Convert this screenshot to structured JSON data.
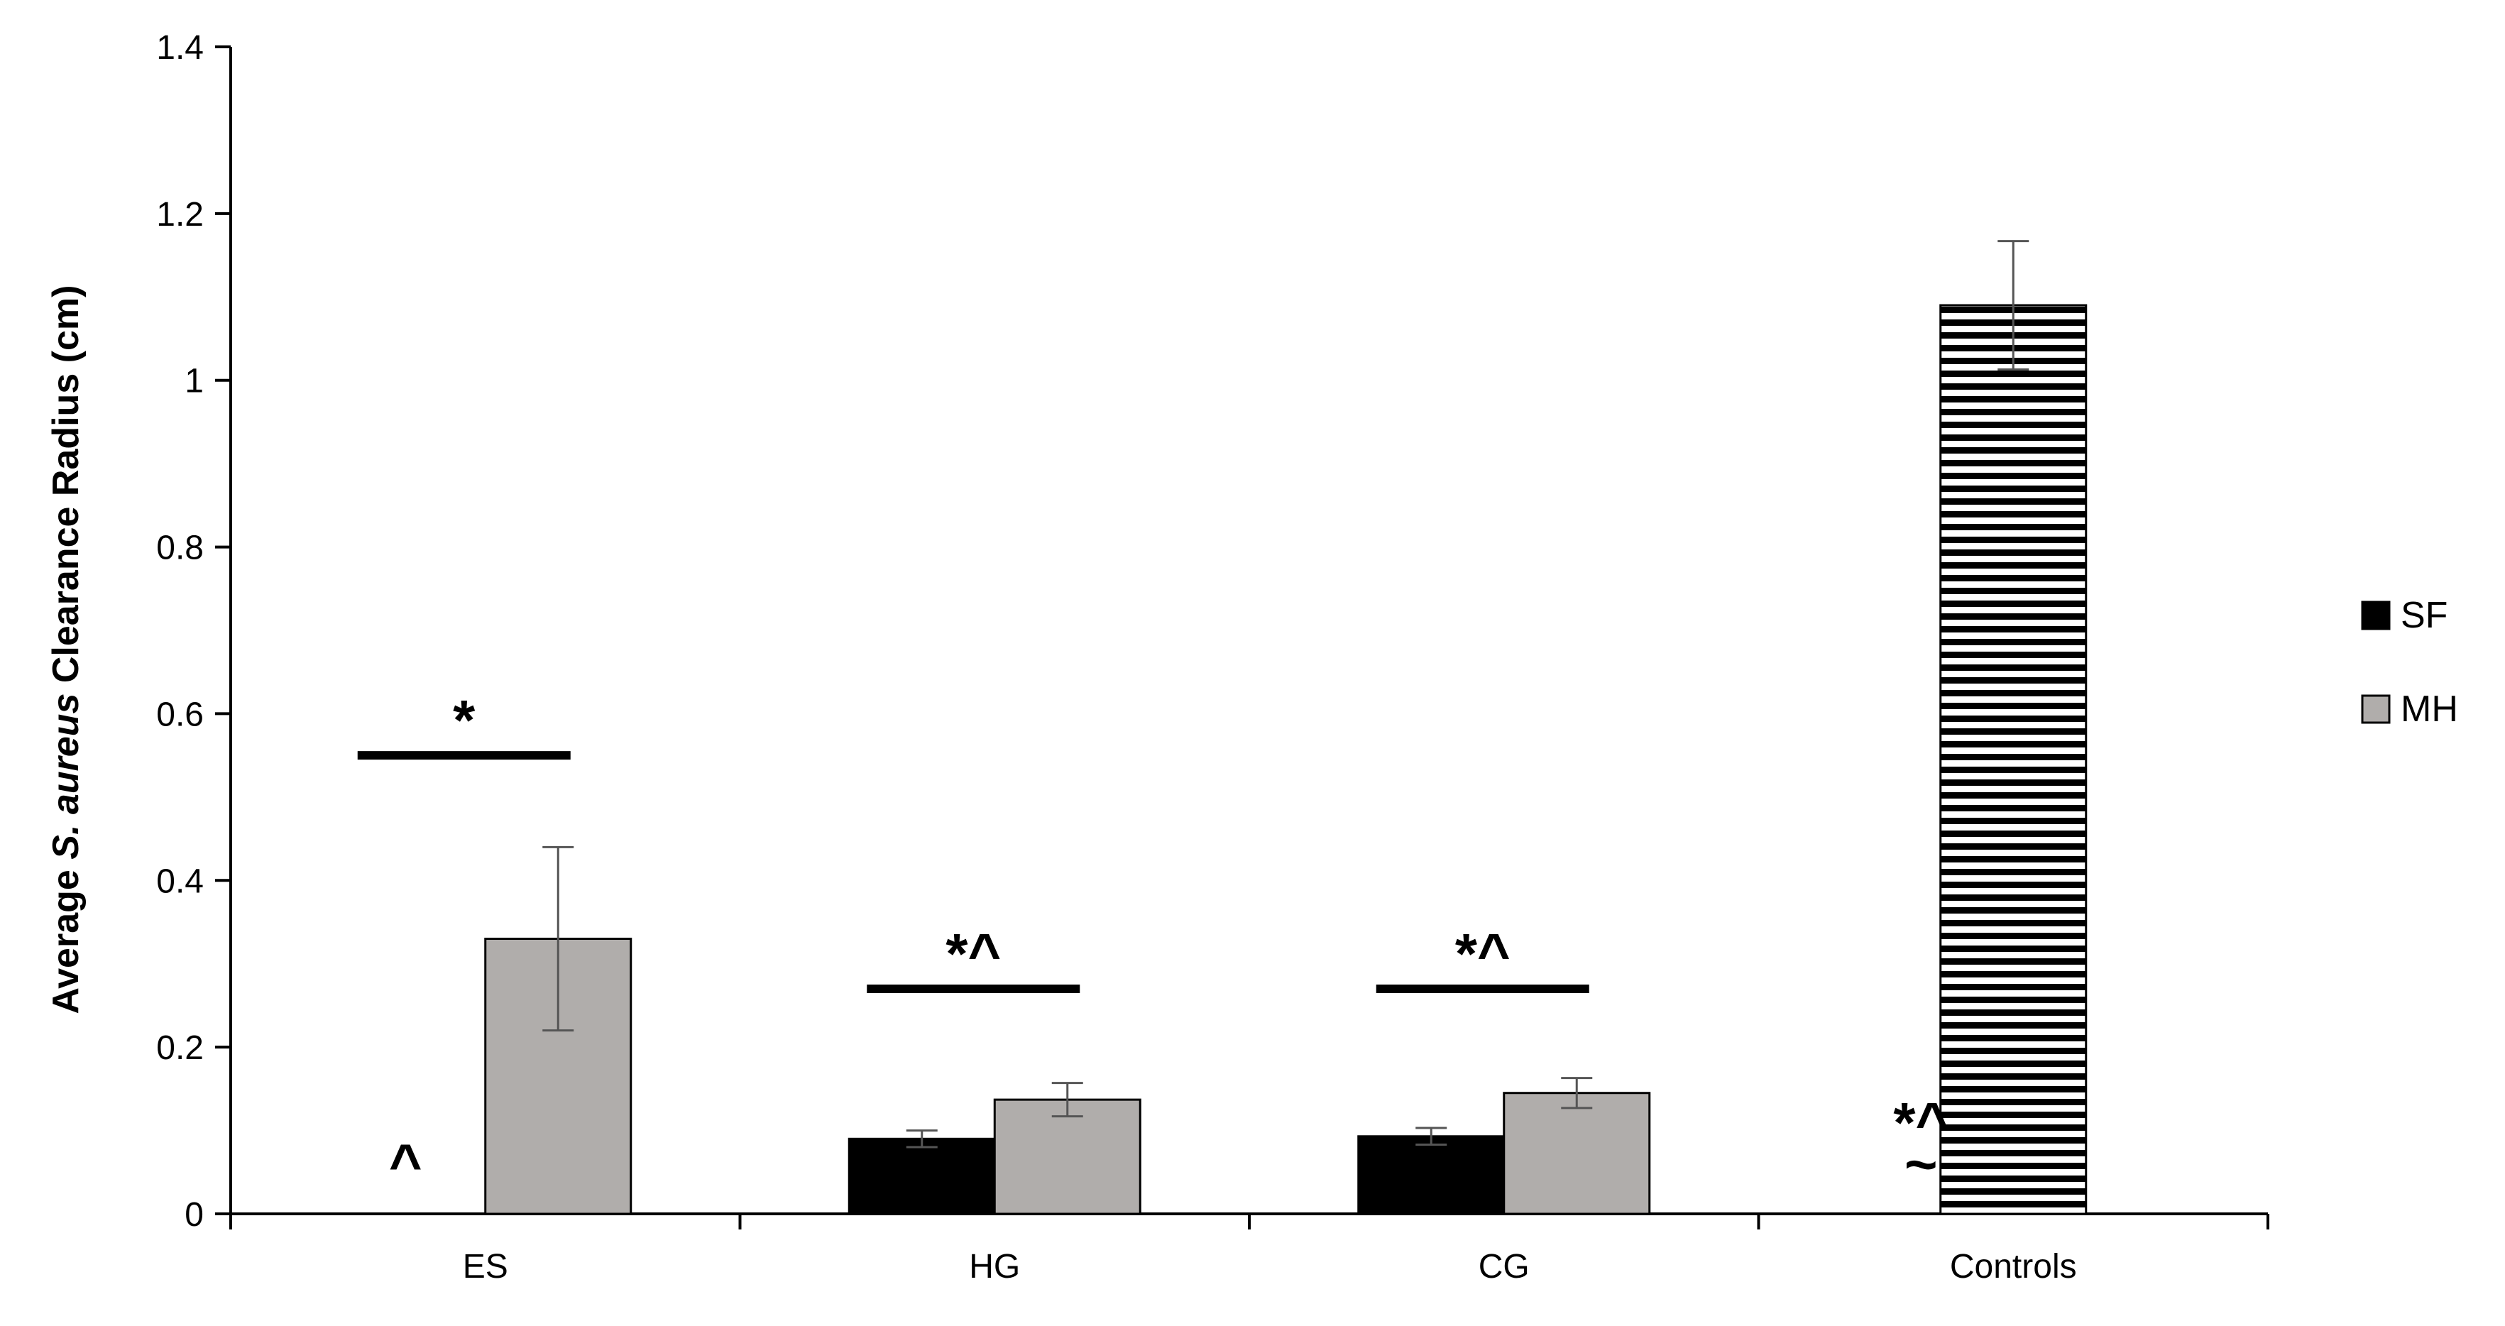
{
  "chart_data": {
    "type": "bar",
    "categories": [
      "ES",
      "HG",
      "CG",
      "Controls"
    ],
    "series": [
      {
        "name": "SF",
        "values": [
          0,
          0.09,
          0.093,
          null
        ],
        "errors": [
          0,
          0.01,
          0.01,
          null
        ],
        "color": "#000000"
      },
      {
        "name": "MH",
        "values": [
          0.33,
          0.137,
          0.145,
          null
        ],
        "errors": [
          0.11,
          0.02,
          0.018,
          null
        ],
        "color": "#b0adab"
      },
      {
        "name": "",
        "values": [
          null,
          null,
          null,
          1.09
        ],
        "errors": [
          null,
          null,
          null,
          0.077
        ],
        "color": "striped"
      }
    ],
    "ylabel": {
      "prefix": "Average ",
      "italic": "S. aureus",
      "suffix": " Clearance Radius (cm)"
    },
    "xlabel": "",
    "ylim": [
      0,
      1.4
    ],
    "yticks": [
      0,
      0.2,
      0.4,
      0.6,
      0.8,
      1,
      1.2,
      1.4
    ],
    "ytick_labels": [
      "0",
      "0.2",
      "0.4",
      "0.6",
      "0.8",
      "1",
      "1.2",
      "1.4"
    ],
    "grid": false,
    "legend": {
      "placement": "right",
      "entries": [
        "SF",
        "MH"
      ]
    },
    "annotations": [
      {
        "category": "ES",
        "text": "*",
        "bracket": true,
        "level": 0.55
      },
      {
        "category": "ES",
        "text": "^",
        "bracket": false,
        "level": 0.06
      },
      {
        "category": "HG",
        "text": "*^",
        "bracket": true,
        "level": 0.27
      },
      {
        "category": "CG",
        "text": "*^",
        "bracket": true,
        "level": 0.27
      },
      {
        "category": "Controls",
        "text": "*^",
        "bracket": false,
        "level": 0.11
      },
      {
        "category": "Controls",
        "text": "~",
        "bracket": false,
        "level": 0.06
      }
    ]
  }
}
